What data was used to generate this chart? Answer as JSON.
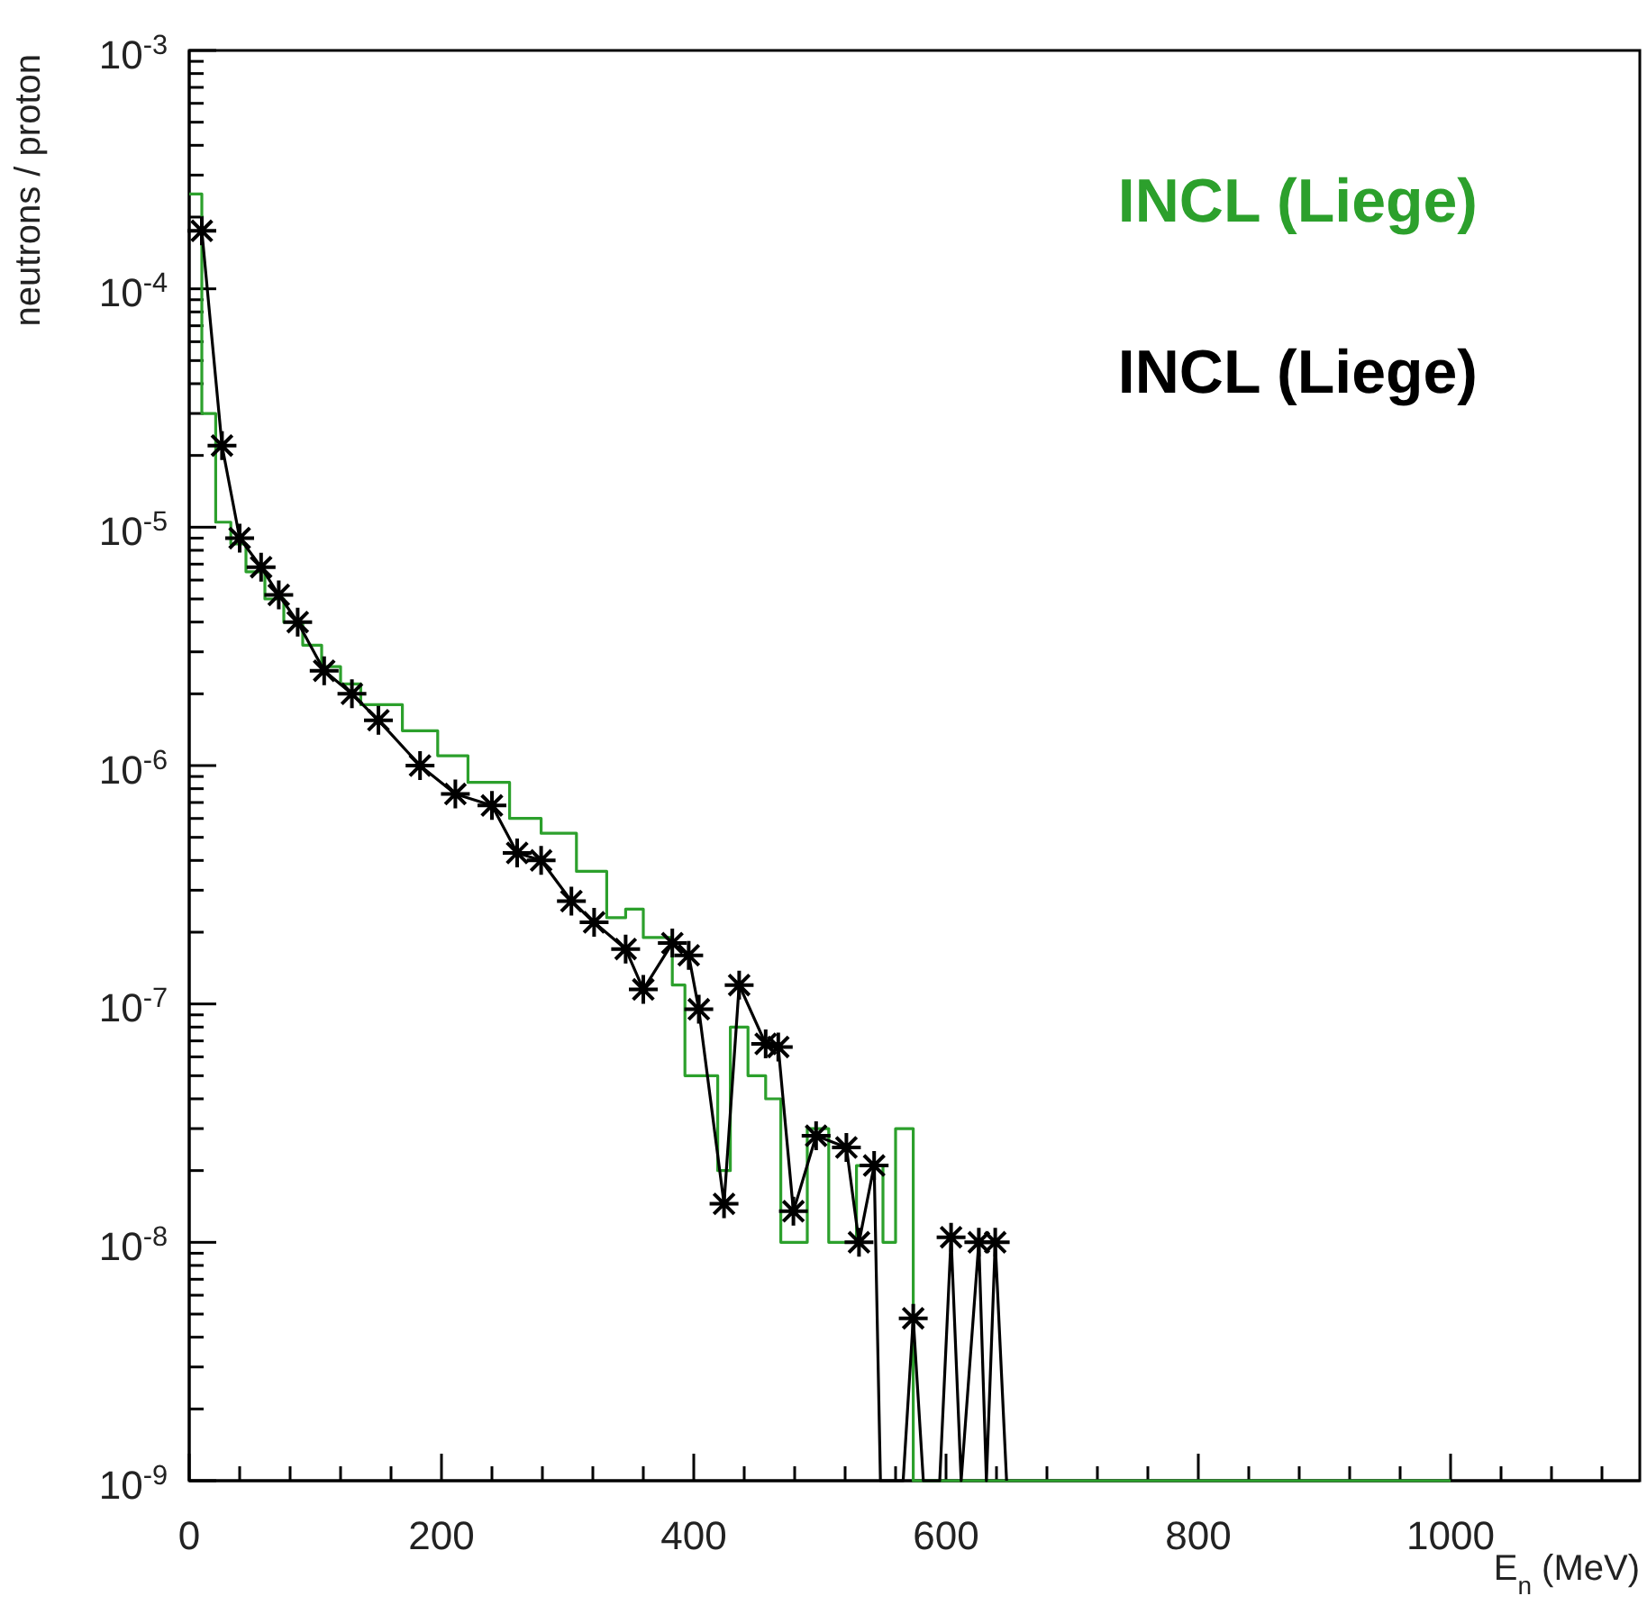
{
  "chart_data": {
    "type": "step",
    "xlabel": "E$_{n}$ (MeV)",
    "ylabel": "neutrons / proton",
    "log": "y",
    "legend": "top right",
    "grid": false,
    "xlim": [
      0,
      1150
    ],
    "xticks": [
      0,
      {
        "value": 40,
        "label": null
      },
      {
        "value": 80,
        "label": null
      },
      {
        "value": 120,
        "label": null
      },
      {
        "value": 160,
        "label": null
      },
      200,
      {
        "value": 240,
        "label": null
      },
      {
        "value": 280,
        "label": null
      },
      {
        "value": 320,
        "label": null
      },
      {
        "value": 360,
        "label": null
      },
      400,
      {
        "value": 440,
        "label": null
      },
      {
        "value": 480,
        "label": null
      },
      {
        "value": 520,
        "label": null
      },
      {
        "value": 560,
        "label": null
      },
      600,
      {
        "value": 640,
        "label": null
      },
      {
        "value": 680,
        "label": null
      },
      {
        "value": 720,
        "label": null
      },
      {
        "value": 760,
        "label": null
      },
      800,
      {
        "value": 840,
        "label": null
      },
      {
        "value": 880,
        "label": null
      },
      {
        "value": 920,
        "label": null
      },
      {
        "value": 960,
        "label": null
      },
      1000,
      {
        "value": 1040,
        "label": null
      },
      {
        "value": 1080,
        "label": null
      },
      {
        "value": 1120,
        "label": null
      }
    ],
    "ylim": [
      1e-09,
      0.001
    ],
    "yticks": [
      {
        "value": 1e-09,
        "label": "10$^{-9}$"
      },
      {
        "value": 2e-09,
        "label": null
      },
      {
        "value": 3e-09,
        "label": null
      },
      {
        "value": 4e-09,
        "label": null
      },
      {
        "value": 5e-09,
        "label": null
      },
      {
        "value": 6e-09,
        "label": null
      },
      {
        "value": 7e-09,
        "label": null
      },
      {
        "value": 8e-09,
        "label": null
      },
      {
        "value": 9e-09,
        "label": null
      },
      {
        "value": 1e-08,
        "label": "10$^{-8}$"
      },
      {
        "value": 2e-08,
        "label": null
      },
      {
        "value": 3e-08,
        "label": null
      },
      {
        "value": 4e-08,
        "label": null
      },
      {
        "value": 5e-08,
        "label": null
      },
      {
        "value": 6e-08,
        "label": null
      },
      {
        "value": 7e-08,
        "label": null
      },
      {
        "value": 8e-08,
        "label": null
      },
      {
        "value": 9e-08,
        "label": null
      },
      {
        "value": 1e-07,
        "label": "10$^{-7}$"
      },
      {
        "value": 2e-07,
        "label": null
      },
      {
        "value": 3e-07,
        "label": null
      },
      {
        "value": 4e-07,
        "label": null
      },
      {
        "value": 5e-07,
        "label": null
      },
      {
        "value": 6e-07,
        "label": null
      },
      {
        "value": 7e-07,
        "label": null
      },
      {
        "value": 8e-07,
        "label": null
      },
      {
        "value": 9e-07,
        "label": null
      },
      {
        "value": 1e-06,
        "label": "10$^{-6}$"
      },
      {
        "value": 2e-06,
        "label": null
      },
      {
        "value": 3e-06,
        "label": null
      },
      {
        "value": 4e-06,
        "label": null
      },
      {
        "value": 5e-06,
        "label": null
      },
      {
        "value": 6e-06,
        "label": null
      },
      {
        "value": 7e-06,
        "label": null
      },
      {
        "value": 8e-06,
        "label": null
      },
      {
        "value": 9e-06,
        "label": null
      },
      {
        "value": 1e-05,
        "label": "10$^{-5}$"
      },
      {
        "value": 2e-05,
        "label": null
      },
      {
        "value": 3e-05,
        "label": null
      },
      {
        "value": 4e-05,
        "label": null
      },
      {
        "value": 5e-05,
        "label": null
      },
      {
        "value": 6e-05,
        "label": null
      },
      {
        "value": 7e-05,
        "label": null
      },
      {
        "value": 8e-05,
        "label": null
      },
      {
        "value": 9e-05,
        "label": null
      },
      {
        "value": 0.0001,
        "label": "10$^{-4}$"
      },
      {
        "value": 0.0002,
        "label": null
      },
      {
        "value": 0.0003,
        "label": null
      },
      {
        "value": 0.0004,
        "label": null
      },
      {
        "value": 0.0005,
        "label": null
      },
      {
        "value": 0.0006,
        "label": null
      },
      {
        "value": 0.0007,
        "label": null
      },
      {
        "value": 0.0008,
        "label": null
      },
      {
        "value": 0.0009,
        "label": null
      },
      {
        "value": 0.001,
        "label": "10$^{-3}$"
      }
    ],
    "series": [
      {
        "name": "INCL (Liege)",
        "color": "#2ca02c",
        "x": [
          0,
          10,
          21,
          33,
          45,
          60,
          75,
          90,
          105,
          120,
          136,
          169,
          197,
          221,
          254,
          279,
          307,
          331,
          346,
          360,
          383,
          393,
          419,
          429,
          443,
          457,
          469,
          490,
          507,
          529,
          550,
          560,
          574,
          1000
        ],
        "values": [
          0.00025,
          3e-05,
          1.05e-05,
          8.5e-06,
          6.5e-06,
          5e-06,
          4e-06,
          3.2e-06,
          2.6e-06,
          2.2e-06,
          1.8e-06,
          1.4e-06,
          1.1e-06,
          8.5e-07,
          6e-07,
          5.2e-07,
          3.6e-07,
          2.3e-07,
          2.5e-07,
          1.9e-07,
          1.2e-07,
          5e-08,
          2e-08,
          8e-08,
          5e-08,
          4e-08,
          1e-08,
          3e-08,
          1e-08,
          2.1e-08,
          1e-08,
          3e-08,
          1e-09,
          1e-09
        ]
      },
      {
        "type": "line",
        "color": "#000000",
        "marker": "none",
        "x": [
          10,
          26,
          40,
          57,
          71,
          86,
          107,
          129,
          150,
          183,
          211,
          240,
          260,
          279,
          303,
          321,
          346,
          360,
          383,
          396,
          404,
          424,
          436,
          457,
          467,
          479,
          497,
          521,
          531,
          543,
          548,
          566,
          574,
          582,
          595,
          604,
          612,
          626,
          632,
          639,
          648
        ],
        "values": [
          0.000175,
          2.2e-05,
          9e-06,
          6.8e-06,
          5.2e-06,
          4e-06,
          2.5e-06,
          2e-06,
          1.55e-06,
          1e-06,
          7.6e-07,
          6.8e-07,
          4.3e-07,
          4e-07,
          2.7e-07,
          2.2e-07,
          1.7e-07,
          1.15e-07,
          1.8e-07,
          1.6e-07,
          9.5e-08,
          1.45e-08,
          1.2e-07,
          6.8e-08,
          6.6e-08,
          1.35e-08,
          2.8e-08,
          2.5e-08,
          1e-08,
          2.1e-08,
          1e-09,
          1e-09,
          4.8e-09,
          1e-09,
          1e-09,
          1.05e-08,
          1e-09,
          1e-08,
          1e-09,
          1e-08,
          1e-09
        ]
      },
      {
        "name": "INCL (Liege)",
        "type": "scatter",
        "color": "#000000",
        "marker": "cross",
        "x": [
          10,
          26,
          40,
          57,
          71,
          86,
          107,
          129,
          150,
          183,
          211,
          240,
          260,
          279,
          303,
          321,
          346,
          360,
          383,
          396,
          404,
          424,
          436,
          457,
          467,
          479,
          497,
          521,
          531,
          543,
          574,
          604,
          626,
          639
        ],
        "values": [
          0.000175,
          2.2e-05,
          9e-06,
          6.8e-06,
          5.2e-06,
          4e-06,
          2.5e-06,
          2e-06,
          1.55e-06,
          1e-06,
          7.6e-07,
          6.8e-07,
          4.3e-07,
          4e-07,
          2.7e-07,
          2.2e-07,
          1.7e-07,
          1.15e-07,
          1.8e-07,
          1.6e-07,
          9.5e-08,
          1.45e-08,
          1.2e-07,
          6.8e-08,
          6.6e-08,
          1.35e-08,
          2.8e-08,
          2.5e-08,
          1e-08,
          2.1e-08,
          4.8e-09,
          1.05e-08,
          1e-08,
          1e-08
        ]
      }
    ]
  }
}
